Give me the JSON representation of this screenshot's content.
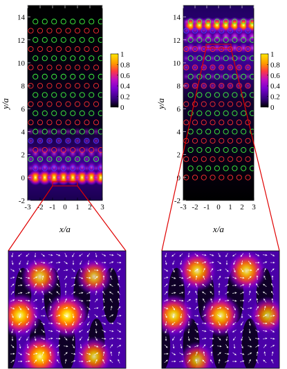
{
  "chart_data": [
    {
      "type": "heatmap",
      "panel": "left",
      "xlabel": "x/a",
      "ylabel": "y/a",
      "xlim": [
        -3,
        3
      ],
      "ylim": [
        -2,
        15
      ],
      "x_ticks": [
        "-3",
        "-2",
        "-1",
        "0",
        "1",
        "2",
        "3"
      ],
      "y_ticks": [
        "-2",
        "0",
        "2",
        "4",
        "6",
        "8",
        "10",
        "12",
        "14"
      ],
      "colorbar": {
        "min": 0,
        "max": 1,
        "ticks": [
          "0",
          "0.2",
          "0.4",
          "0.6",
          "0.8",
          "1"
        ]
      },
      "field_localized_near_y": [
        0,
        4
      ],
      "peak_rows_y": [
        0.0,
        0.9,
        2.1
      ],
      "peak_row_intensity": [
        0.95,
        0.55,
        0.45
      ],
      "lattice_columns_x": [
        -2.75,
        -2.0,
        -1.25,
        -0.5,
        0.25,
        1.0,
        1.75,
        2.5
      ],
      "lattice_rows": [
        {
          "y": 0.0,
          "color": "red"
        },
        {
          "y": 0.8,
          "color": "blue"
        },
        {
          "y": 1.6,
          "color": "green"
        },
        {
          "y": 2.4,
          "color": "red"
        },
        {
          "y": 3.2,
          "color": "blue"
        },
        {
          "y": 4.0,
          "color": "green"
        },
        {
          "y": 4.8,
          "color": "red"
        },
        {
          "y": 5.6,
          "color": "green"
        },
        {
          "y": 6.4,
          "color": "red"
        },
        {
          "y": 7.2,
          "color": "green"
        },
        {
          "y": 8.0,
          "color": "red"
        },
        {
          "y": 8.8,
          "color": "green"
        },
        {
          "y": 9.6,
          "color": "red"
        },
        {
          "y": 10.4,
          "color": "green"
        },
        {
          "y": 11.2,
          "color": "red"
        },
        {
          "y": 12.0,
          "color": "green"
        },
        {
          "y": 12.8,
          "color": "red"
        },
        {
          "y": 13.6,
          "color": "green"
        }
      ]
    },
    {
      "type": "heatmap",
      "panel": "right",
      "xlabel": "x/a",
      "ylabel": "y/a",
      "xlim": [
        -3,
        3
      ],
      "ylim": [
        -2,
        15
      ],
      "x_ticks": [
        "-3",
        "-2",
        "-1",
        "0",
        "1",
        "2",
        "3"
      ],
      "y_ticks": [
        "-2",
        "0",
        "2",
        "4",
        "6",
        "8",
        "10",
        "12",
        "14"
      ],
      "colorbar": {
        "min": 0,
        "max": 1,
        "ticks": [
          "0",
          "0.2",
          "0.4",
          "0.6",
          "0.8",
          "1"
        ]
      },
      "field_localized_near_y": [
        8,
        14
      ],
      "peak_rows_y": [
        13.3,
        12.3,
        11.3
      ],
      "peak_row_intensity": [
        0.95,
        0.7,
        0.55
      ],
      "lattice_columns_x": [
        -2.75,
        -2.0,
        -1.25,
        -0.5,
        0.25,
        1.0,
        1.75,
        2.5
      ],
      "lattice_rows": [
        {
          "y": 0.0,
          "color": "red"
        },
        {
          "y": 0.8,
          "color": "green"
        },
        {
          "y": 1.6,
          "color": "red"
        },
        {
          "y": 2.4,
          "color": "green"
        },
        {
          "y": 3.2,
          "color": "red"
        },
        {
          "y": 4.0,
          "color": "green"
        },
        {
          "y": 4.8,
          "color": "red"
        },
        {
          "y": 5.6,
          "color": "green"
        },
        {
          "y": 6.4,
          "color": "red"
        },
        {
          "y": 7.2,
          "color": "green"
        },
        {
          "y": 8.0,
          "color": "red"
        },
        {
          "y": 8.8,
          "color": "green"
        },
        {
          "y": 9.6,
          "color": "red"
        },
        {
          "y": 10.4,
          "color": "green"
        },
        {
          "y": 11.2,
          "color": "red"
        },
        {
          "y": 12.0,
          "color": "green"
        },
        {
          "y": 12.8,
          "color": "blue"
        },
        {
          "y": 13.6,
          "color": "green"
        }
      ]
    },
    {
      "type": "heatmap",
      "panel": "left-zoom",
      "description_of_region": "zoom of left panel near y=0, x from -1 to 1",
      "bright_spots": [
        [
          0.27,
          0.22
        ],
        [
          0.73,
          0.22
        ],
        [
          0.1,
          0.55
        ],
        [
          0.5,
          0.55
        ],
        [
          0.27,
          0.9
        ],
        [
          0.73,
          0.9
        ]
      ],
      "spot_intensity": [
        0.7,
        0.6,
        0.95,
        1.0,
        0.95,
        0.7
      ],
      "overlay": "white in-plane field arrows"
    },
    {
      "type": "heatmap",
      "panel": "right-zoom",
      "description_of_region": "zoom of right panel near y=12, x from -1 to 1",
      "bright_spots": [
        [
          0.3,
          0.17
        ],
        [
          0.72,
          0.17
        ],
        [
          0.1,
          0.55
        ],
        [
          0.5,
          0.55
        ],
        [
          0.9,
          0.55
        ],
        [
          0.3,
          0.93
        ]
      ],
      "spot_intensity": [
        0.8,
        0.8,
        0.85,
        0.85,
        0.6,
        0.55
      ],
      "overlay": "white in-plane field arrows"
    }
  ],
  "colors": {
    "cmap": [
      "#000000",
      "#3a007a",
      "#7a00d0",
      "#b000d8",
      "#e4186a",
      "#ff7a00",
      "#ffd500",
      "#ffffa0"
    ],
    "lattice_red": "#ff3030",
    "lattice_green": "#40ff40",
    "lattice_blue": "#4040ff",
    "zoom_lines": "#e00000",
    "arrows": "#ffffff"
  }
}
